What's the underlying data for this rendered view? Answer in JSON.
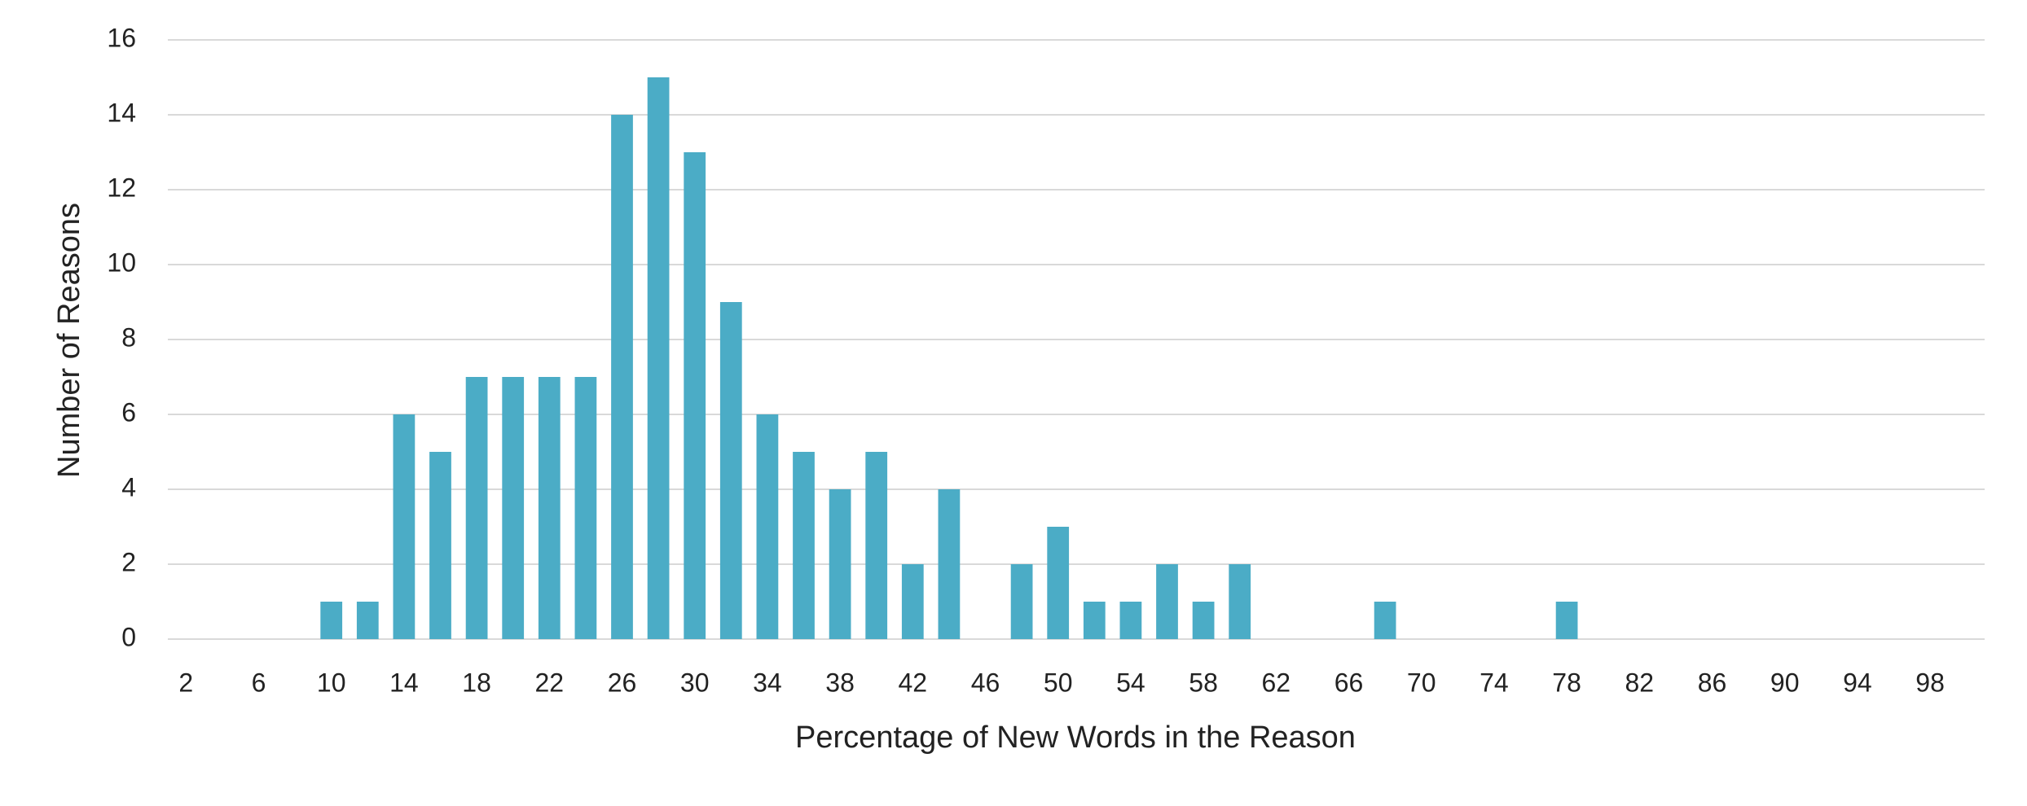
{
  "chart_data": {
    "type": "bar",
    "x_label": "Percentage of New Words in the Reason",
    "y_label": "Number of Reasons",
    "categories": [
      "2",
      null,
      "6",
      null,
      "10",
      null,
      "14",
      null,
      "18",
      null,
      "22",
      null,
      "26",
      null,
      "30",
      null,
      "34",
      null,
      "38",
      null,
      "42",
      null,
      "46",
      null,
      "50",
      null,
      "54",
      null,
      "58",
      null,
      "62",
      null,
      "66",
      null,
      "70",
      null,
      "74",
      null,
      "78",
      null,
      "82",
      null,
      "86",
      null,
      "90",
      null,
      "94",
      null,
      "98",
      null
    ],
    "values": [
      0,
      0,
      0,
      0,
      1,
      1,
      6,
      5,
      7,
      7,
      7,
      7,
      14,
      15,
      13,
      9,
      6,
      5,
      4,
      5,
      2,
      4,
      0,
      2,
      3,
      1,
      1,
      2,
      1,
      2,
      0,
      0,
      0,
      1,
      0,
      0,
      0,
      0,
      1,
      0,
      0,
      0,
      0,
      0,
      0,
      0,
      0,
      0,
      0,
      0
    ],
    "color": "#4bacc6",
    "ylim": [
      0,
      16
    ],
    "yticks": [
      0,
      2,
      4,
      6,
      8,
      10,
      12,
      14,
      16
    ],
    "grid": true
  }
}
